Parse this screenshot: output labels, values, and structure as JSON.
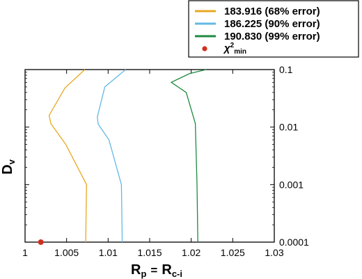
{
  "chart_data": {
    "type": "line",
    "xlabel": {
      "main": "R",
      "sub1": "p",
      "eq": "=",
      "main2": "R",
      "sub2": "c-i"
    },
    "ylabel": {
      "main": "D",
      "sub": "v"
    },
    "xlim": [
      1.0,
      1.03
    ],
    "ylim": [
      0.0001,
      0.1
    ],
    "yscale": "log",
    "xticks": [
      {
        "value": 1.0,
        "label": "1"
      },
      {
        "value": 1.005,
        "label": "1.005"
      },
      {
        "value": 1.01,
        "label": "1.01"
      },
      {
        "value": 1.015,
        "label": "1.015"
      },
      {
        "value": 1.02,
        "label": "1.02"
      },
      {
        "value": 1.025,
        "label": "1.025"
      },
      {
        "value": 1.03,
        "label": "1.03"
      }
    ],
    "yticks": [
      {
        "value": 0.1,
        "label": "0.1"
      },
      {
        "value": 0.01,
        "label": "0.01"
      },
      {
        "value": 0.001,
        "label": "0.001"
      },
      {
        "value": 0.0001,
        "label": "0.0001"
      }
    ],
    "legend_position": "top-right, outside plot",
    "series": [
      {
        "name": "183.916 (68% error)",
        "color": "#e8a820",
        "points": [
          [
            1.0073,
            0.0001
          ],
          [
            1.0074,
            0.001
          ],
          [
            1.0049,
            0.005
          ],
          [
            1.0031,
            0.0115
          ],
          [
            1.0029,
            0.016
          ],
          [
            1.0048,
            0.048
          ],
          [
            1.0072,
            0.1
          ]
        ]
      },
      {
        "name": "186.225 (90% error)",
        "color": "#62b8e4",
        "points": [
          [
            1.0117,
            0.0001
          ],
          [
            1.0116,
            0.001
          ],
          [
            1.0101,
            0.006
          ],
          [
            1.0088,
            0.0113
          ],
          [
            1.0087,
            0.015
          ],
          [
            1.0096,
            0.05
          ],
          [
            1.0121,
            0.1
          ]
        ]
      },
      {
        "name": "190.830 (99% error)",
        "color": "#1e8a40",
        "points": [
          [
            1.0208,
            0.0001
          ],
          [
            1.0207,
            0.001
          ],
          [
            1.0205,
            0.0115
          ],
          [
            1.0194,
            0.04
          ],
          [
            1.0176,
            0.06
          ],
          [
            1.0198,
            0.085
          ],
          [
            1.0218,
            0.1
          ]
        ]
      }
    ],
    "marker": {
      "name": "χ²min",
      "label_main": "χ",
      "label_sup": "2",
      "label_sub": "min",
      "color": "#d03020",
      "x": 1.0019,
      "y": 0.0001
    }
  }
}
